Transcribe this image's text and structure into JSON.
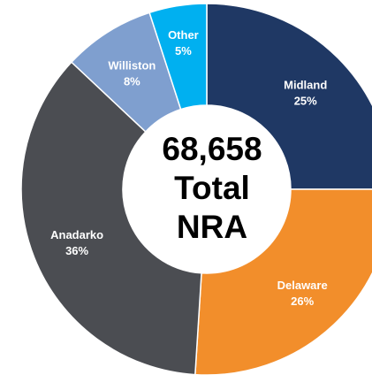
{
  "chart_data": {
    "type": "pie",
    "style": "donut",
    "start_angle_deg": 0,
    "direction": "clockwise",
    "categories": [
      "Midland",
      "Delaware",
      "Anadarko",
      "Williston",
      "Other"
    ],
    "values": [
      25,
      26,
      36,
      8,
      5
    ],
    "value_labels": [
      "25%",
      "26%",
      "36%",
      "8%",
      "5%"
    ],
    "colors": [
      "#1f3864",
      "#f28e2b",
      "#4b4d52",
      "#7f9fcf",
      "#00b0f0"
    ],
    "center_lines": [
      "68,658",
      "Total",
      "NRA"
    ],
    "legend": "none",
    "grid": false
  }
}
